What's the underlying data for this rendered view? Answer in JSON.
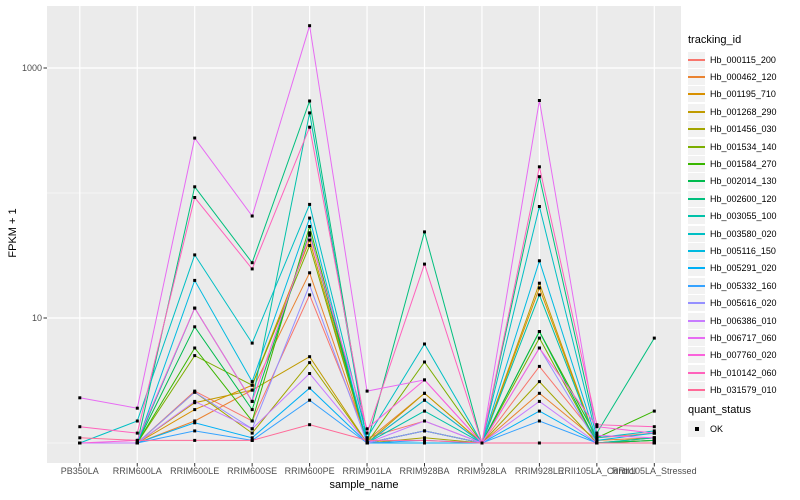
{
  "chart_data": {
    "type": "line",
    "title": "",
    "xlabel": "sample_name",
    "ylabel": "FPKM + 1",
    "y_scale": "log10",
    "y_ticks": [
      {
        "value": 10,
        "label": "10"
      },
      {
        "value": 1000,
        "label": "1000"
      }
    ],
    "y_minor_gridlines": [
      1,
      100
    ],
    "legend_title": "tracking_id",
    "legend_position": "right",
    "grid": true,
    "point_legend": {
      "title": "quant_status",
      "label": "OK",
      "color": "#000000"
    },
    "colors": {
      "panel_bg": "#EBEBEB",
      "gridline": "#FFFFFF",
      "tick_mark": "#333333",
      "tick_label": "#4D4D4D",
      "point": "#000000",
      "legend_key_bg": "#F2F2F2"
    },
    "categories": [
      "PB350LA",
      "RRIM600LA",
      "RRIM600LE",
      "RRIM600SE",
      "RRIM600PE",
      "RRIM901LA",
      "RRIM928BA",
      "RRIM928LA",
      "RRIM928LE",
      "RRII105LA_Control",
      "RRII105LA_Stressed"
    ],
    "series": [
      {
        "name": "Hb_000115_200",
        "color": "#F8766D",
        "values": [
          1.0,
          1.0,
          2.6,
          1.5,
          15.3,
          1.1,
          1.5,
          1.0,
          4.1,
          1.1,
          1.2
        ]
      },
      {
        "name": "Hb_000462_120",
        "color": "#EA8331",
        "values": [
          1.0,
          1.0,
          1.5,
          2.65,
          23,
          1.05,
          2.5,
          1.0,
          2.5,
          1.05,
          1.1
        ]
      },
      {
        "name": "Hb_001195_710",
        "color": "#D89000",
        "values": [
          1.0,
          1.0,
          1.85,
          2.9,
          42,
          1.0,
          2.2,
          1.0,
          17.4,
          1.0,
          1.05
        ]
      },
      {
        "name": "Hb_001268_290",
        "color": "#C09B00",
        "values": [
          1.0,
          1.0,
          2.1,
          2.65,
          4.9,
          1.0,
          2.5,
          1.0,
          19,
          1.0,
          1.05
        ]
      },
      {
        "name": "Hb_001456_030",
        "color": "#A3A500",
        "values": [
          1.0,
          1.0,
          2.55,
          1.2,
          4.4,
          1.0,
          1.1,
          1.0,
          3.1,
          1.0,
          1.0
        ]
      },
      {
        "name": "Hb_001534_140",
        "color": "#7CAE00",
        "values": [
          1.0,
          1.0,
          5.0,
          2.9,
          38,
          1.0,
          4.45,
          1.0,
          6.9,
          1.0,
          1.1
        ]
      },
      {
        "name": "Hb_001584_270",
        "color": "#39B600",
        "values": [
          1.0,
          1.0,
          5.75,
          1.5,
          54,
          1.0,
          1.25,
          1.0,
          7.8,
          1.1,
          1.8
        ]
      },
      {
        "name": "Hb_002014_130",
        "color": "#00BB4E",
        "values": [
          1.0,
          1.0,
          8.5,
          1.85,
          48,
          1.0,
          1.25,
          1.0,
          7.8,
          1.0,
          1.05
        ]
      },
      {
        "name": "Hb_002600_120",
        "color": "#00BF7D",
        "values": [
          1.0,
          1.0,
          112,
          27.7,
          545,
          1.0,
          48.8,
          1.0,
          135,
          1.2,
          6.9
        ]
      },
      {
        "name": "Hb_003055_100",
        "color": "#00C1A9",
        "values": [
          1.0,
          1.0,
          12,
          2.15,
          437,
          1.0,
          1.8,
          1.0,
          15.3,
          1.0,
          1.1
        ]
      },
      {
        "name": "Hb_003580_020",
        "color": "#00BFC4",
        "values": [
          1.0,
          1.5,
          32,
          6.3,
          81,
          1.1,
          6.2,
          1.0,
          78,
          1.1,
          1.25
        ]
      },
      {
        "name": "Hb_005116_150",
        "color": "#00BAE0",
        "values": [
          1.0,
          1.0,
          20,
          3.1,
          63,
          1.0,
          2.2,
          1.0,
          28.7,
          1.05,
          1.2
        ]
      },
      {
        "name": "Hb_005291_020",
        "color": "#00B0F6",
        "values": [
          1.0,
          1.0,
          1.45,
          1.1,
          2.75,
          1.0,
          1.0,
          1.0,
          1.8,
          1.0,
          1.0
        ]
      },
      {
        "name": "Hb_005332_160",
        "color": "#35A2FF",
        "values": [
          1.0,
          1.0,
          1.25,
          1.05,
          2.2,
          1.0,
          1.05,
          1.0,
          1.5,
          1.0,
          1.0
        ]
      },
      {
        "name": "Hb_005616_020",
        "color": "#9590FF",
        "values": [
          1.0,
          1.0,
          2.55,
          1.3,
          18.4,
          1.0,
          1.25,
          1.0,
          5.75,
          1.0,
          1.0
        ]
      },
      {
        "name": "Hb_006386_010",
        "color": "#C77CFF",
        "values": [
          1.0,
          1.0,
          2.15,
          1.3,
          3.6,
          1.0,
          1.5,
          1.0,
          2.15,
          1.0,
          1.0
        ]
      },
      {
        "name": "Hb_006717_060",
        "color": "#E76BF3",
        "values": [
          2.3,
          1.9,
          275,
          65.5,
          2180,
          2.6,
          3.2,
          1.0,
          550,
          1.15,
          1.1
        ]
      },
      {
        "name": "Hb_007760_020",
        "color": "#FA62DB",
        "values": [
          1.0,
          1.05,
          12,
          2.15,
          46,
          1.3,
          3.2,
          1.0,
          5.75,
          1.35,
          1.2
        ]
      },
      {
        "name": "Hb_010142_060",
        "color": "#FF62BC",
        "values": [
          1.35,
          1.2,
          92,
          24.7,
          336,
          1.2,
          27,
          1.0,
          162,
          1.4,
          1.35
        ]
      },
      {
        "name": "Hb_031579_010",
        "color": "#FF6A98",
        "values": [
          1.1,
          1.05,
          1.05,
          1.05,
          1.4,
          1.05,
          1.05,
          1.0,
          1.0,
          1.0,
          1.0
        ]
      }
    ]
  }
}
